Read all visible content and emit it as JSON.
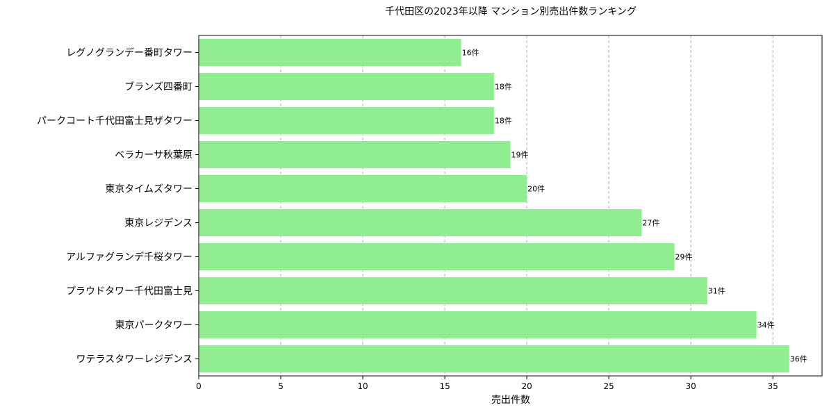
{
  "chart_data": {
    "type": "bar",
    "orientation": "horizontal",
    "title": "千代田区の2023年以降 マンション別売出件数ランキング",
    "xlabel": "売出件数",
    "ylabel": "",
    "xlim": [
      0,
      38
    ],
    "xticks": [
      0,
      5,
      10,
      15,
      20,
      25,
      30,
      35
    ],
    "grid": "x-dashed",
    "bar_color": "#90ee90",
    "value_suffix": "件",
    "categories": [
      "ワテラスタワーレジデンス",
      "東京パークタワー",
      "プラウドタワー千代田富士見",
      "アルファグランデ千桜タワー",
      "東京レジデンス",
      "東京タイムズタワー",
      "ベラカーサ秋葉原",
      "パークコート千代田富士見ザタワー",
      "ブランズ四番町",
      "レグノグランデー番町タワー"
    ],
    "values": [
      36,
      34,
      31,
      29,
      27,
      20,
      19,
      18,
      18,
      16
    ],
    "data_labels": [
      "36件",
      "34件",
      "31件",
      "29件",
      "27件",
      "20件",
      "19件",
      "18件",
      "18件",
      "16件"
    ]
  }
}
